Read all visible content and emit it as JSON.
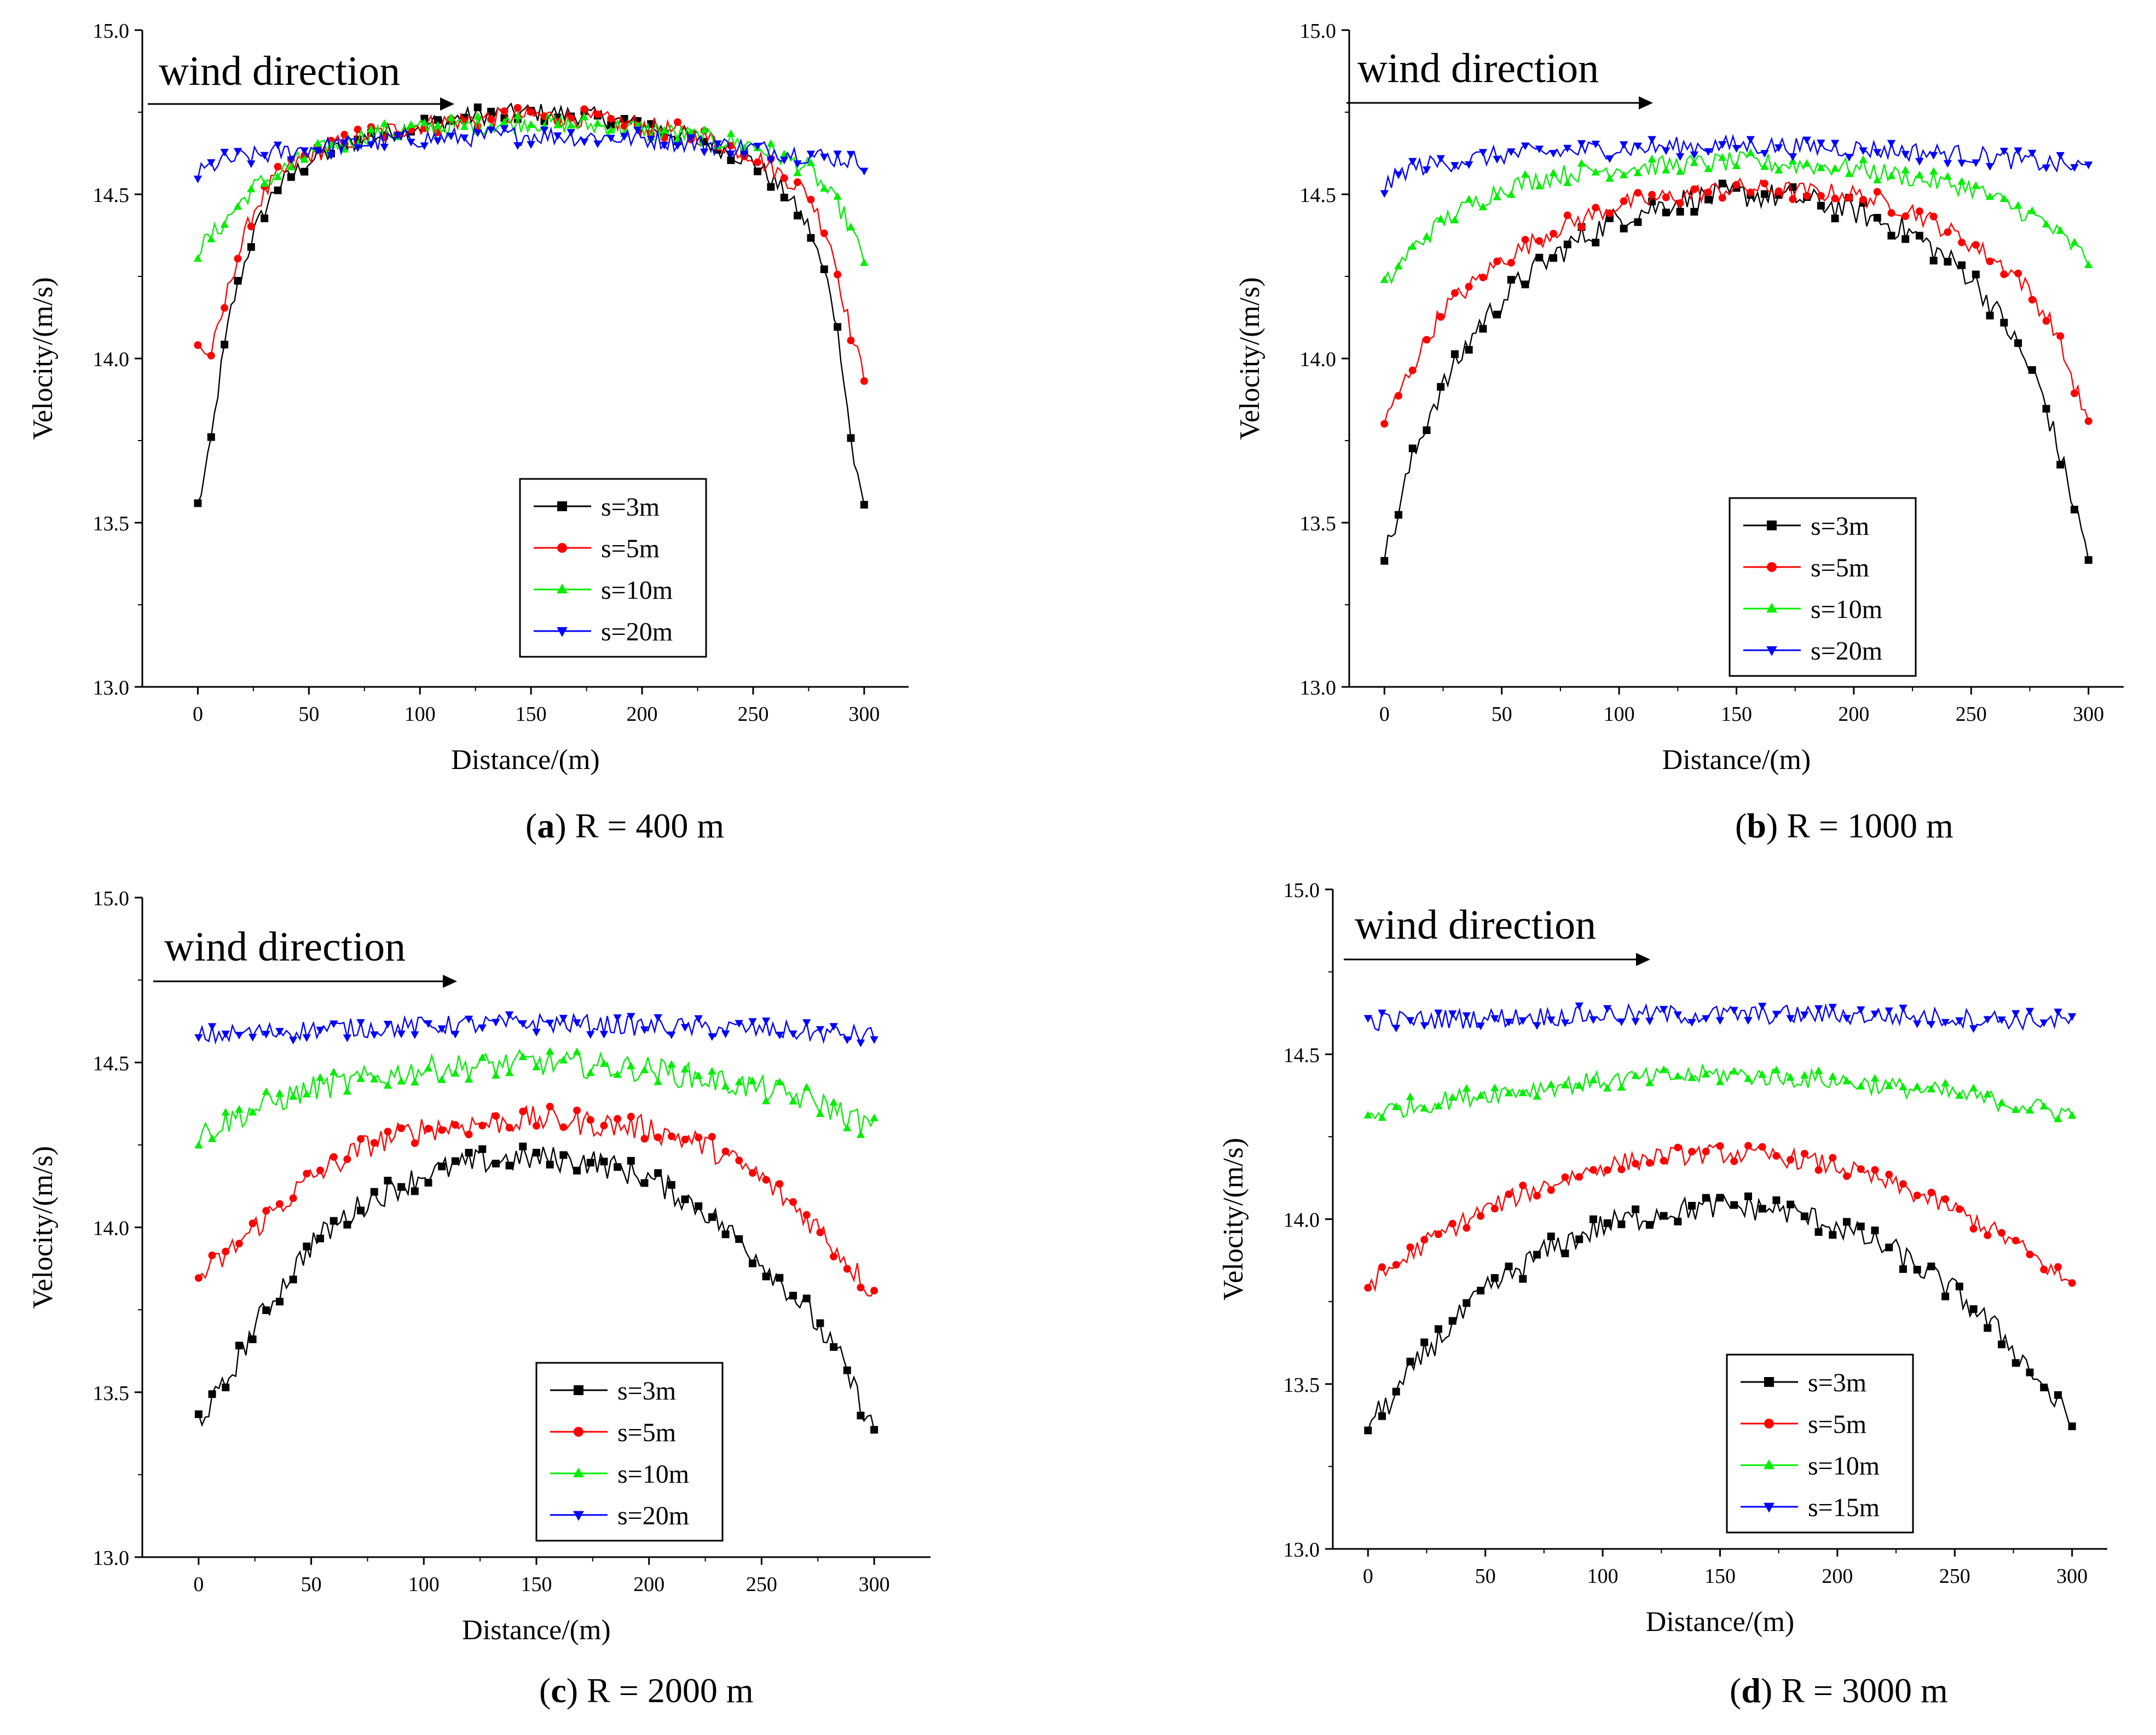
{
  "figure": {
    "wind_label": "wind direction",
    "legend_labels_a": [
      "s=3m",
      "s=5m",
      "s=10m",
      "s=20m"
    ],
    "legend_labels_d": [
      "s=3m",
      "s=5m",
      "s=10m",
      "s=15m"
    ]
  },
  "chart_data": [
    {
      "type": "line",
      "panel": "a",
      "caption_letter": "a",
      "caption_text": " R = 400 m",
      "xlabel": "Distance/(m)",
      "ylabel": "Velocity/(m/s)",
      "xlim": [
        -25,
        320
      ],
      "ylim": [
        13.0,
        15.0
      ],
      "xticks": [
        0,
        50,
        100,
        150,
        200,
        250,
        300
      ],
      "yticks": [
        "13.0",
        "13.5",
        "14.0",
        "14.5",
        "15.0"
      ],
      "legend": [
        "s=3m",
        "s=5m",
        "s=10m",
        "s=20m"
      ],
      "legend_position": "bottom-center",
      "annotation": "wind direction",
      "series": [
        {
          "name": "s=3m",
          "color": "#000000",
          "marker": "square",
          "x": [
            0,
            5,
            10,
            15,
            25,
            35,
            50,
            75,
            100,
            125,
            150,
            175,
            200,
            225,
            250,
            265,
            275,
            285,
            290,
            295,
            300
          ],
          "y": [
            13.55,
            13.7,
            13.95,
            14.15,
            14.38,
            14.52,
            14.6,
            14.67,
            14.71,
            14.74,
            14.75,
            14.74,
            14.71,
            14.67,
            14.6,
            14.5,
            14.4,
            14.2,
            14.0,
            13.7,
            13.55
          ],
          "noise": 0.03
        },
        {
          "name": "s=5m",
          "color": "#ff0000",
          "marker": "circle",
          "x": [
            0,
            5,
            10,
            15,
            25,
            35,
            50,
            75,
            100,
            125,
            150,
            175,
            200,
            225,
            250,
            265,
            275,
            285,
            290,
            295,
            300
          ],
          "y": [
            14.05,
            14.0,
            14.1,
            14.25,
            14.45,
            14.55,
            14.62,
            14.68,
            14.71,
            14.73,
            14.74,
            14.73,
            14.71,
            14.68,
            14.62,
            14.55,
            14.5,
            14.35,
            14.2,
            14.05,
            13.95
          ],
          "noise": 0.03
        },
        {
          "name": "s=10m",
          "color": "#00ee00",
          "marker": "triangle-up",
          "x": [
            0,
            10,
            25,
            50,
            75,
            100,
            150,
            200,
            250,
            275,
            290,
            300
          ],
          "y": [
            14.33,
            14.4,
            14.52,
            14.62,
            14.68,
            14.7,
            14.72,
            14.7,
            14.65,
            14.58,
            14.45,
            14.3
          ],
          "noise": 0.03
        },
        {
          "name": "s=20m",
          "color": "#0000ff",
          "marker": "triangle-down",
          "x": [
            0,
            10,
            50,
            100,
            150,
            200,
            250,
            300
          ],
          "y": [
            14.56,
            14.6,
            14.64,
            14.67,
            14.68,
            14.67,
            14.64,
            14.6
          ],
          "noise": 0.03
        }
      ]
    },
    {
      "type": "line",
      "panel": "b",
      "caption_letter": "b",
      "caption_text": " R = 1000 m",
      "xlabel": "Distance/(m)",
      "ylabel": "Velocity/(m/s)",
      "xlim": [
        -15,
        315
      ],
      "ylim": [
        13.0,
        15.0
      ],
      "xticks": [
        0,
        50,
        100,
        150,
        200,
        250,
        300
      ],
      "yticks": [
        "13.0",
        "13.5",
        "14.0",
        "14.5",
        "15.0"
      ],
      "legend": [
        "s=3m",
        "s=5m",
        "s=10m",
        "s=20m"
      ],
      "legend_position": "bottom-center",
      "annotation": "wind direction",
      "series": [
        {
          "name": "s=3m",
          "color": "#000000",
          "marker": "square",
          "x": [
            0,
            5,
            10,
            20,
            40,
            60,
            80,
            100,
            125,
            150,
            175,
            200,
            225,
            250,
            265,
            280,
            290,
            300
          ],
          "y": [
            13.4,
            13.5,
            13.65,
            13.85,
            14.1,
            14.25,
            14.35,
            14.43,
            14.48,
            14.5,
            14.49,
            14.45,
            14.38,
            14.25,
            14.1,
            13.9,
            13.65,
            13.4
          ],
          "noise": 0.04
        },
        {
          "name": "s=5m",
          "color": "#ff0000",
          "marker": "circle",
          "x": [
            0,
            10,
            25,
            50,
            75,
            100,
            150,
            200,
            225,
            250,
            270,
            285,
            300
          ],
          "y": [
            13.8,
            13.95,
            14.15,
            14.3,
            14.4,
            14.47,
            14.52,
            14.5,
            14.45,
            14.35,
            14.25,
            14.1,
            13.8
          ],
          "noise": 0.03
        },
        {
          "name": "s=10m",
          "color": "#00ee00",
          "marker": "triangle-up",
          "x": [
            0,
            10,
            25,
            50,
            75,
            100,
            150,
            200,
            250,
            280,
            300
          ],
          "y": [
            14.22,
            14.32,
            14.42,
            14.52,
            14.56,
            14.58,
            14.6,
            14.58,
            14.52,
            14.42,
            14.3
          ],
          "noise": 0.03
        },
        {
          "name": "s=20m",
          "color": "#0000ff",
          "marker": "triangle-down",
          "x": [
            0,
            10,
            50,
            100,
            150,
            200,
            250,
            300
          ],
          "y": [
            14.52,
            14.58,
            14.62,
            14.64,
            14.65,
            14.64,
            14.62,
            14.58
          ],
          "noise": 0.03
        }
      ]
    },
    {
      "type": "line",
      "panel": "c",
      "caption_letter": "c",
      "caption_text": " R = 2000 m",
      "xlabel": "Distance/(m)",
      "ylabel": "Velocity/(m/s)",
      "xlim": [
        -25,
        325
      ],
      "ylim": [
        13.0,
        15.0
      ],
      "xticks": [
        0,
        50,
        100,
        150,
        200,
        250,
        300
      ],
      "yticks": [
        "13.0",
        "13.5",
        "14.0",
        "14.5",
        "15.0"
      ],
      "legend": [
        "s=3m",
        "s=5m",
        "s=10m",
        "s=20m"
      ],
      "legend_position": "bottom-center",
      "annotation": "wind direction",
      "series": [
        {
          "name": "s=3m",
          "color": "#000000",
          "marker": "square",
          "x": [
            0,
            10,
            25,
            50,
            75,
            100,
            125,
            150,
            175,
            200,
            225,
            250,
            270,
            285,
            300
          ],
          "y": [
            13.42,
            13.5,
            13.7,
            13.95,
            14.08,
            14.16,
            14.2,
            14.21,
            14.2,
            14.15,
            14.05,
            13.9,
            13.75,
            13.6,
            13.38
          ],
          "noise": 0.04
        },
        {
          "name": "s=5m",
          "color": "#ff0000",
          "marker": "circle",
          "x": [
            0,
            10,
            25,
            50,
            75,
            100,
            150,
            200,
            225,
            250,
            275,
            300
          ],
          "y": [
            13.85,
            13.9,
            14.0,
            14.15,
            14.25,
            14.3,
            14.33,
            14.3,
            14.25,
            14.15,
            14.0,
            13.8
          ],
          "noise": 0.04
        },
        {
          "name": "s=10m",
          "color": "#00ee00",
          "marker": "triangle-up",
          "x": [
            0,
            25,
            50,
            100,
            150,
            200,
            250,
            275,
            300
          ],
          "y": [
            14.28,
            14.36,
            14.42,
            14.48,
            14.5,
            14.48,
            14.42,
            14.38,
            14.3
          ],
          "noise": 0.04
        },
        {
          "name": "s=20m",
          "color": "#0000ff",
          "marker": "triangle-down",
          "x": [
            0,
            50,
            100,
            150,
            200,
            250,
            300
          ],
          "y": [
            14.58,
            14.6,
            14.61,
            14.62,
            14.61,
            14.6,
            14.58
          ],
          "noise": 0.03
        }
      ]
    },
    {
      "type": "line",
      "panel": "d",
      "caption_letter": "d",
      "caption_text": " R = 3000 m",
      "xlabel": "Distance/(m)",
      "ylabel": "Velocity/(m/s)",
      "xlim": [
        -15,
        315
      ],
      "ylim": [
        13.0,
        15.0
      ],
      "xticks": [
        0,
        50,
        100,
        150,
        200,
        250,
        300
      ],
      "yticks": [
        "13.0",
        "13.5",
        "14.0",
        "14.5",
        "15.0"
      ],
      "legend": [
        "s=3m",
        "s=5m",
        "s=10m",
        "s=15m"
      ],
      "legend_position": "bottom-center",
      "annotation": "wind direction",
      "series": [
        {
          "name": "s=3m",
          "color": "#000000",
          "marker": "square",
          "x": [
            0,
            10,
            25,
            50,
            75,
            100,
            125,
            150,
            175,
            200,
            225,
            250,
            270,
            285,
            300
          ],
          "y": [
            13.38,
            13.45,
            13.6,
            13.78,
            13.9,
            13.98,
            14.02,
            14.04,
            14.03,
            13.98,
            13.9,
            13.78,
            13.65,
            13.52,
            13.38
          ],
          "noise": 0.04
        },
        {
          "name": "s=5m",
          "color": "#ff0000",
          "marker": "circle",
          "x": [
            0,
            10,
            25,
            50,
            75,
            100,
            125,
            150,
            175,
            200,
            225,
            250,
            275,
            300
          ],
          "y": [
            13.8,
            13.85,
            13.93,
            14.03,
            14.1,
            14.16,
            14.19,
            14.2,
            14.19,
            14.16,
            14.1,
            14.03,
            13.93,
            13.8
          ],
          "noise": 0.03
        },
        {
          "name": "s=10m",
          "color": "#00ee00",
          "marker": "triangle-up",
          "x": [
            0,
            25,
            50,
            100,
            150,
            200,
            250,
            300
          ],
          "y": [
            14.32,
            14.35,
            14.38,
            14.42,
            14.44,
            14.42,
            14.38,
            14.32
          ],
          "noise": 0.03
        },
        {
          "name": "s=15m",
          "color": "#0000ff",
          "marker": "triangle-down",
          "x": [
            0,
            50,
            100,
            150,
            200,
            250,
            300
          ],
          "y": [
            14.6,
            14.61,
            14.62,
            14.62,
            14.62,
            14.61,
            14.6
          ],
          "noise": 0.03
        }
      ]
    }
  ]
}
